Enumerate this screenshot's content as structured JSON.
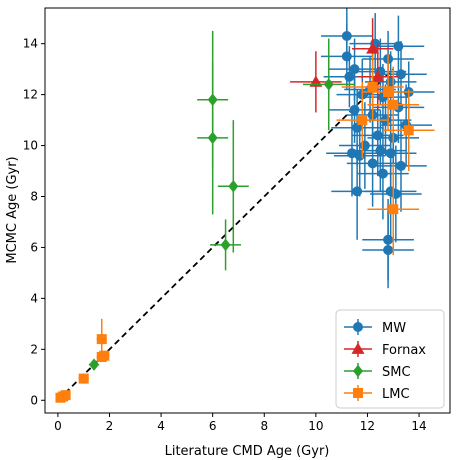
{
  "chart_data": {
    "type": "scatter",
    "xlabel": "Literature CMD Age (Gyr)",
    "ylabel": "MCMC Age (Gyr)",
    "xlim": [
      -0.5,
      15.2
    ],
    "ylim": [
      -0.5,
      15.4
    ],
    "xticks": [
      0,
      2,
      4,
      6,
      8,
      10,
      12,
      14
    ],
    "yticks": [
      0,
      2,
      4,
      6,
      8,
      10,
      12,
      14
    ],
    "grid": false,
    "legend_position": "lower-right",
    "reference_line": {
      "style": "dashed",
      "color": "#000000",
      "from": [
        0,
        0
      ],
      "to": [
        13,
        13
      ]
    },
    "series": [
      {
        "name": "MW",
        "marker": "circle",
        "color": "#1f77b4",
        "points": [
          {
            "x": 11.2,
            "y": 14.3,
            "xerr": 1.0,
            "yerr": 1.1
          },
          {
            "x": 12.3,
            "y": 14.0,
            "xerr": 1.0,
            "yerr": 1.2
          },
          {
            "x": 13.2,
            "y": 13.9,
            "xerr": 1.0,
            "yerr": 1.2
          },
          {
            "x": 11.2,
            "y": 13.5,
            "xerr": 1.0,
            "yerr": 1.3
          },
          {
            "x": 12.8,
            "y": 13.4,
            "xerr": 1.0,
            "yerr": 1.1
          },
          {
            "x": 11.5,
            "y": 13.0,
            "xerr": 1.0,
            "yerr": 1.2
          },
          {
            "x": 12.5,
            "y": 12.9,
            "xerr": 1.0,
            "yerr": 1.3
          },
          {
            "x": 13.3,
            "y": 12.8,
            "xerr": 1.0,
            "yerr": 1.3
          },
          {
            "x": 11.3,
            "y": 12.7,
            "xerr": 1.0,
            "yerr": 1.2
          },
          {
            "x": 12.9,
            "y": 12.5,
            "xerr": 1.0,
            "yerr": 1.2
          },
          {
            "x": 12.1,
            "y": 12.2,
            "xerr": 1.0,
            "yerr": 1.3
          },
          {
            "x": 13.6,
            "y": 12.1,
            "xerr": 1.0,
            "yerr": 1.2
          },
          {
            "x": 11.8,
            "y": 12.0,
            "xerr": 1.0,
            "yerr": 1.4
          },
          {
            "x": 12.6,
            "y": 11.9,
            "xerr": 1.0,
            "yerr": 1.3
          },
          {
            "x": 13.2,
            "y": 11.5,
            "xerr": 1.0,
            "yerr": 1.4
          },
          {
            "x": 11.5,
            "y": 11.4,
            "xerr": 1.0,
            "yerr": 1.3
          },
          {
            "x": 12.2,
            "y": 11.2,
            "xerr": 1.0,
            "yerr": 1.5
          },
          {
            "x": 12.7,
            "y": 11.0,
            "xerr": 1.0,
            "yerr": 1.4
          },
          {
            "x": 13.5,
            "y": 10.8,
            "xerr": 1.0,
            "yerr": 1.6
          },
          {
            "x": 11.6,
            "y": 10.7,
            "xerr": 1.0,
            "yerr": 1.5
          },
          {
            "x": 12.4,
            "y": 10.4,
            "xerr": 1.0,
            "yerr": 1.6
          },
          {
            "x": 13.0,
            "y": 10.3,
            "xerr": 1.0,
            "yerr": 1.5
          },
          {
            "x": 11.9,
            "y": 10.0,
            "xerr": 1.0,
            "yerr": 1.7
          },
          {
            "x": 12.5,
            "y": 9.8,
            "xerr": 1.0,
            "yerr": 1.6
          },
          {
            "x": 11.4,
            "y": 9.7,
            "xerr": 1.0,
            "yerr": 1.7
          },
          {
            "x": 12.9,
            "y": 9.7,
            "xerr": 1.0,
            "yerr": 1.8
          },
          {
            "x": 11.7,
            "y": 9.6,
            "xerr": 1.0,
            "yerr": 1.6
          },
          {
            "x": 12.2,
            "y": 9.3,
            "xerr": 1.0,
            "yerr": 1.7
          },
          {
            "x": 13.3,
            "y": 9.2,
            "xerr": 1.0,
            "yerr": 1.8
          },
          {
            "x": 12.6,
            "y": 8.9,
            "xerr": 1.0,
            "yerr": 1.8
          },
          {
            "x": 11.6,
            "y": 8.2,
            "xerr": 1.0,
            "yerr": 1.9
          },
          {
            "x": 12.9,
            "y": 8.2,
            "xerr": 1.0,
            "yerr": 1.9
          },
          {
            "x": 13.1,
            "y": 8.1,
            "xerr": 1.0,
            "yerr": 1.9
          },
          {
            "x": 12.8,
            "y": 6.3,
            "xerr": 1.0,
            "yerr": 1.6
          },
          {
            "x": 12.8,
            "y": 5.9,
            "xerr": 1.0,
            "yerr": 1.5
          }
        ]
      },
      {
        "name": "Fornax",
        "marker": "triangle",
        "color": "#d62728",
        "points": [
          {
            "x": 12.2,
            "y": 13.8,
            "xerr": 0.8,
            "yerr": 1.2
          },
          {
            "x": 10.0,
            "y": 12.5,
            "xerr": 1.0,
            "yerr": 1.2
          },
          {
            "x": 12.4,
            "y": 12.7,
            "xerr": 0.8,
            "yerr": 1.3
          }
        ]
      },
      {
        "name": "SMC",
        "marker": "diamond",
        "color": "#2ca02c",
        "points": [
          {
            "x": 6.0,
            "y": 11.8,
            "xerr": 0.6,
            "yerr": 2.7
          },
          {
            "x": 6.0,
            "y": 10.3,
            "xerr": 0.6,
            "yerr": 3.0
          },
          {
            "x": 6.8,
            "y": 8.4,
            "xerr": 0.6,
            "yerr": 2.6
          },
          {
            "x": 6.5,
            "y": 6.1,
            "xerr": 0.6,
            "yerr": 1.0
          },
          {
            "x": 10.5,
            "y": 12.4,
            "xerr": 1.0,
            "yerr": 1.8
          },
          {
            "x": 1.4,
            "y": 1.4,
            "xerr": 0.2,
            "yerr": 0.2
          }
        ]
      },
      {
        "name": "LMC",
        "marker": "square",
        "color": "#ff7f0e",
        "points": [
          {
            "x": 0.1,
            "y": 0.1,
            "xerr": 0.05,
            "yerr": 0.05
          },
          {
            "x": 0.2,
            "y": 0.15,
            "xerr": 0.05,
            "yerr": 0.05
          },
          {
            "x": 0.3,
            "y": 0.2,
            "xerr": 0.05,
            "yerr": 0.05
          },
          {
            "x": 1.0,
            "y": 0.85,
            "xerr": 0.2,
            "yerr": 0.2
          },
          {
            "x": 1.7,
            "y": 1.7,
            "xerr": 0.2,
            "yerr": 0.2
          },
          {
            "x": 1.8,
            "y": 1.75,
            "xerr": 0.2,
            "yerr": 0.2
          },
          {
            "x": 1.7,
            "y": 2.4,
            "xerr": 0.2,
            "yerr": 0.8
          },
          {
            "x": 12.2,
            "y": 12.3,
            "xerr": 1.2,
            "yerr": 1.3
          },
          {
            "x": 12.8,
            "y": 12.1,
            "xerr": 1.0,
            "yerr": 1.5
          },
          {
            "x": 13.0,
            "y": 11.6,
            "xerr": 1.0,
            "yerr": 1.5
          },
          {
            "x": 11.8,
            "y": 11.0,
            "xerr": 1.0,
            "yerr": 1.5
          },
          {
            "x": 13.6,
            "y": 10.6,
            "xerr": 1.0,
            "yerr": 1.6
          },
          {
            "x": 13.0,
            "y": 7.5,
            "xerr": 1.0,
            "yerr": 1.8
          }
        ]
      }
    ]
  }
}
